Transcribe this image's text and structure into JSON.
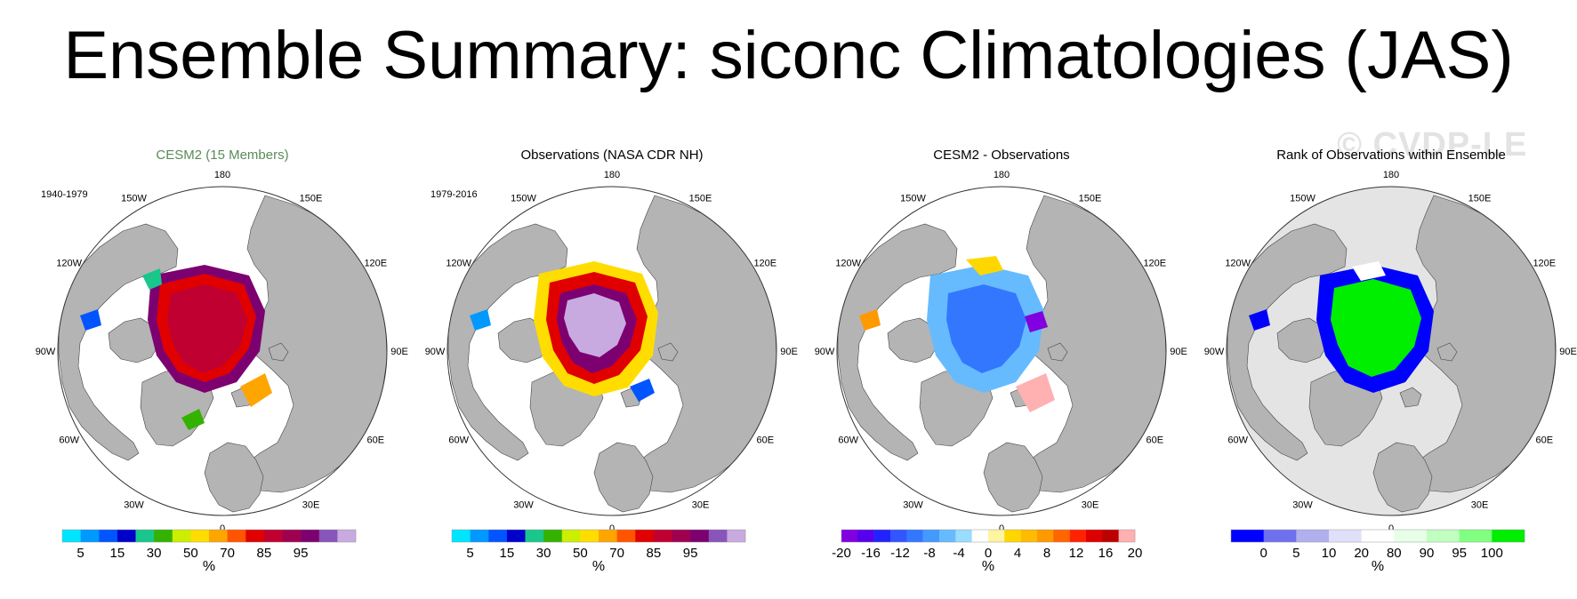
{
  "title": "Ensemble Summary: siconc Climatologies (JAS)",
  "watermark": "© CVDP-LE",
  "colors": {
    "land": "#b4b4b4",
    "ocean_rank": "#e4e4e4",
    "conc_palette": [
      "#00e5ff",
      "#0099ff",
      "#0055ff",
      "#0000cc",
      "#19c68c",
      "#33b300",
      "#ccee00",
      "#ffdd00",
      "#ffa500",
      "#ff5500",
      "#e00000",
      "#c00030",
      "#a00050",
      "#7c0070",
      "#8855bb",
      "#c8aae0"
    ],
    "diff_palette": [
      "#8000e0",
      "#5500ee",
      "#2222ff",
      "#3355ff",
      "#3377ff",
      "#4499ff",
      "#66bbff",
      "#99ddff",
      "#ffffff",
      "#fff4a0",
      "#ffd700",
      "#ffbb00",
      "#ff9900",
      "#ff6600",
      "#ff2200",
      "#dd0000",
      "#bb0000",
      "#ffb0b0"
    ],
    "rank_palette": [
      "#0000ff",
      "#7070ee",
      "#b0b0ee",
      "#e0e0fa",
      "#ffffff",
      "#e6ffe6",
      "#c0ffc0",
      "#80ff80",
      "#00ee00"
    ]
  },
  "panels": [
    {
      "title": "CESM2 (15 Members)",
      "period": "1940-1979",
      "longitudes": [
        "180",
        "150W",
        "150E",
        "120W",
        "120E",
        "90W",
        "90E",
        "60W",
        "60E",
        "30W",
        "30E",
        "0"
      ],
      "colorbar": {
        "ticks": [
          "5",
          "15",
          "30",
          "50",
          "70",
          "85",
          "95"
        ],
        "unit": "%"
      }
    },
    {
      "title": "Observations (NASA CDR NH)",
      "period": "1979-2016",
      "longitudes": [
        "180",
        "150W",
        "150E",
        "120W",
        "120E",
        "90W",
        "90E",
        "60W",
        "60E",
        "30W",
        "30E",
        "0"
      ],
      "colorbar": {
        "ticks": [
          "5",
          "15",
          "30",
          "50",
          "70",
          "85",
          "95"
        ],
        "unit": "%"
      }
    },
    {
      "title": "CESM2 - Observations",
      "period": "",
      "longitudes": [
        "180",
        "150W",
        "150E",
        "120W",
        "120E",
        "90W",
        "90E",
        "60W",
        "60E",
        "30W",
        "30E",
        "0"
      ],
      "colorbar": {
        "ticks": [
          "-20",
          "-16",
          "-12",
          "-8",
          "-4",
          "0",
          "4",
          "8",
          "12",
          "16",
          "20"
        ],
        "unit": "%"
      }
    },
    {
      "title": "Rank of Observations within Ensemble",
      "period": "",
      "longitudes": [
        "180",
        "150W",
        "150E",
        "120W",
        "120E",
        "90W",
        "90E",
        "60W",
        "60E",
        "30W",
        "30E",
        "0"
      ],
      "colorbar": {
        "ticks": [
          "0",
          "5",
          "10",
          "20",
          "80",
          "90",
          "95",
          "100"
        ],
        "unit": "%"
      }
    }
  ]
}
